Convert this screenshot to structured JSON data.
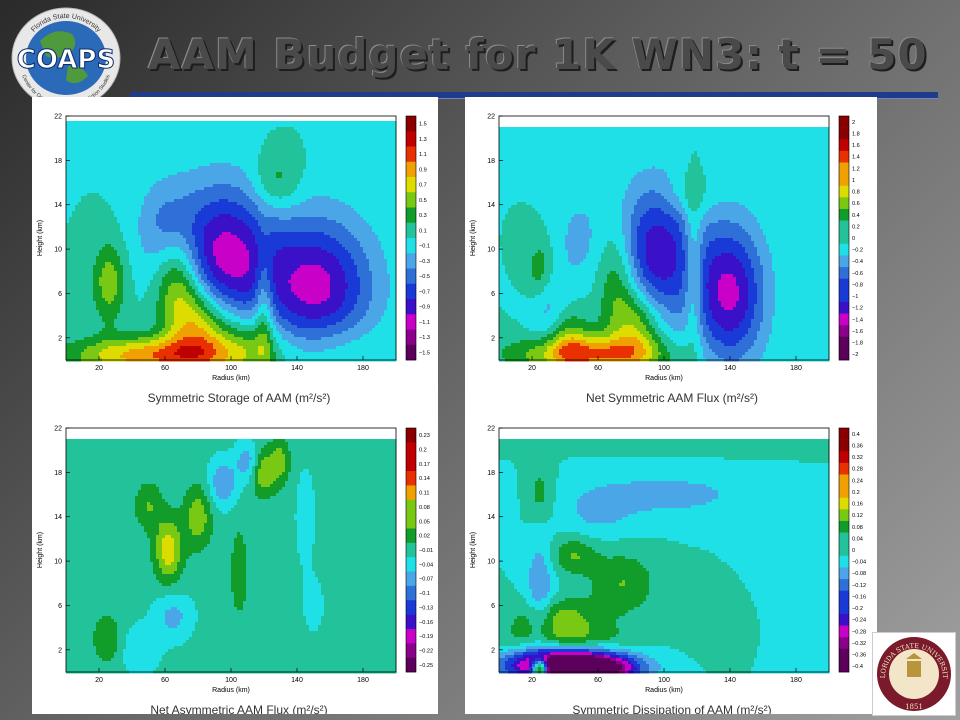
{
  "header": {
    "title": "AAM Budget for 1K WN3:  t = 50",
    "logo_coaps": {
      "text": "COAPS",
      "ring_top": "Florida State University",
      "ring_bottom": "Center for Ocean-Atmospheric Prediction Studies"
    }
  },
  "logo_fsu": {
    "ring_text": "FLORIDA STATE UNIVERSITY",
    "year": "1851"
  },
  "colors": {
    "background": "#6e6e6e",
    "title_bar": "#1f3c8c",
    "colormap": [
      "#5b005b",
      "#8a008a",
      "#c800c8",
      "#3a10c8",
      "#1a3ad8",
      "#2f6fd8",
      "#4aa6e6",
      "#1ee0e6",
      "#22c39a",
      "#129c29",
      "#78c814",
      "#dcdc00",
      "#f0a000",
      "#e83000",
      "#c00000",
      "#8a0000"
    ]
  },
  "chart_data": [
    {
      "type": "heatmap",
      "title": "Symmetric Storage of AAM (m²/s²)",
      "xlabel": "Radius (km)",
      "ylabel": "Height (km)",
      "xticks": [
        "20",
        "60",
        "100",
        "140",
        "180"
      ],
      "yticks": [
        "2",
        "6",
        "10",
        "14",
        "18",
        "22"
      ],
      "xlim": [
        0,
        200
      ],
      "ylim": [
        0,
        22
      ],
      "colorbar": [
        "1.5",
        "1.3",
        "1.1",
        "0.9",
        "0.7",
        "0.5",
        "0.3",
        "0.1",
        "−0.1",
        "−0.3",
        "−0.5",
        "−0.7",
        "−0.9",
        "−1.1",
        "−1.3",
        "−1.5"
      ],
      "vmin": -1.5,
      "vmax": 1.5,
      "data_top": 21.5,
      "features": [
        {
          "r": 95,
          "z": 9.5,
          "sr": 22,
          "sz": 4.5,
          "a": -1.0
        },
        {
          "r": 152,
          "z": 6.5,
          "sr": 24,
          "sz": 4.5,
          "a": -1.0
        },
        {
          "r": 68,
          "z": 7,
          "sr": 10,
          "sz": 3.5,
          "a": 0.75
        },
        {
          "r": 82,
          "z": 3,
          "sr": 12,
          "sz": 2.5,
          "a": 0.75
        },
        {
          "r": 26,
          "z": 7,
          "sr": 7,
          "sz": 2.5,
          "a": 0.5
        },
        {
          "r": 128,
          "z": 16,
          "sr": 10,
          "sz": 2,
          "a": 0.35
        },
        {
          "r": 55,
          "z": 0.4,
          "sr": 35,
          "sz": 1.2,
          "a": 0.9
        },
        {
          "r": 110,
          "z": 1.5,
          "sr": 15,
          "sz": 2,
          "a": 0.5
        },
        {
          "r": 120,
          "z": 5,
          "sr": 4,
          "sz": 4,
          "a": 0.45
        },
        {
          "r": 60,
          "z": 12,
          "sr": 12,
          "sz": 3,
          "a": -0.35
        },
        {
          "r": 160,
          "z": 1,
          "sr": 20,
          "sz": 2,
          "a": 0.25
        }
      ]
    },
    {
      "type": "heatmap",
      "title": "Net Symmetric AAM Flux (m²/s²)",
      "xlabel": "Radius (km)",
      "ylabel": "Height (km)",
      "xticks": [
        "20",
        "60",
        "100",
        "140",
        "180"
      ],
      "yticks": [
        "2",
        "6",
        "10",
        "14",
        "18",
        "22"
      ],
      "xlim": [
        0,
        200
      ],
      "ylim": [
        0,
        22
      ],
      "colorbar": [
        "2",
        "1.8",
        "1.6",
        "1.4",
        "1.2",
        "1",
        "0.8",
        "0.6",
        "0.4",
        "0.2",
        "0",
        "−0.2",
        "−0.4",
        "−0.6",
        "−0.8",
        "−1",
        "−1.2",
        "−1.4",
        "−1.6",
        "−1.8",
        "−2"
      ],
      "vmin": -2,
      "vmax": 2,
      "data_top": 21,
      "features": [
        {
          "r": 95,
          "z": 9.5,
          "sr": 18,
          "sz": 4.5,
          "a": -1.2
        },
        {
          "r": 140,
          "z": 6,
          "sr": 15,
          "sz": 4.5,
          "a": -1.3
        },
        {
          "r": 72,
          "z": 7,
          "sr": 9,
          "sz": 4,
          "a": 0.7
        },
        {
          "r": 118,
          "z": 8,
          "sr": 4,
          "sz": 5,
          "a": 0.6
        },
        {
          "r": 85,
          "z": 3,
          "sr": 10,
          "sz": 2.5,
          "a": 0.8
        },
        {
          "r": 55,
          "z": 0.5,
          "sr": 30,
          "sz": 1.2,
          "a": 1.2
        },
        {
          "r": 25,
          "z": 8,
          "sr": 6,
          "sz": 2,
          "a": 0.5
        },
        {
          "r": 30,
          "z": 4,
          "sr": 8,
          "sz": 3,
          "a": -0.5
        },
        {
          "r": 115,
          "z": 15,
          "sr": 10,
          "sz": 1.5,
          "a": 0.3
        },
        {
          "r": 48,
          "z": 11,
          "sr": 10,
          "sz": 3,
          "a": -0.3
        },
        {
          "r": 40,
          "z": 2,
          "sr": 10,
          "sz": 2,
          "a": 0.6
        }
      ]
    },
    {
      "type": "heatmap",
      "title": "Net Asymmetric AAM Flux (m²/s²)",
      "xlabel": "Radius (km)",
      "ylabel": "Height (km)",
      "xticks": [
        "20",
        "60",
        "100",
        "140",
        "180"
      ],
      "yticks": [
        "2",
        "6",
        "10",
        "14",
        "18",
        "22"
      ],
      "xlim": [
        0,
        200
      ],
      "ylim": [
        0,
        22
      ],
      "colorbar": [
        "0.23",
        "0.2",
        "0.17",
        "0.14",
        "0.11",
        "0.08",
        "0.05",
        "0.02",
        "−0.01",
        "−0.04",
        "−0.07",
        "−0.1",
        "−0.13",
        "−0.16",
        "−0.19",
        "−0.22",
        "−0.25"
      ],
      "vmin": -0.25,
      "vmax": 0.23,
      "data_top": 21,
      "features": [
        {
          "r": 62,
          "z": 11,
          "sr": 6,
          "sz": 2,
          "a": 0.1
        },
        {
          "r": 80,
          "z": 14,
          "sr": 6,
          "sz": 2,
          "a": 0.07
        },
        {
          "r": 95,
          "z": 17,
          "sr": 6,
          "sz": 1.5,
          "a": -0.07
        },
        {
          "r": 110,
          "z": 19,
          "sr": 5,
          "sz": 1.2,
          "a": -0.06
        },
        {
          "r": 120,
          "z": 18,
          "sr": 5,
          "sz": 1.5,
          "a": 0.08
        },
        {
          "r": 130,
          "z": 19,
          "sr": 4,
          "sz": 1.5,
          "a": 0.06
        },
        {
          "r": 50,
          "z": 15,
          "sr": 6,
          "sz": 1.5,
          "a": 0.05
        },
        {
          "r": 65,
          "z": 5,
          "sr": 8,
          "sz": 1.5,
          "a": -0.05
        },
        {
          "r": 25,
          "z": 3,
          "sr": 6,
          "sz": 1.5,
          "a": 0.05
        },
        {
          "r": 45,
          "z": 2,
          "sr": 8,
          "sz": 1.5,
          "a": -0.04
        },
        {
          "r": 105,
          "z": 9,
          "sr": 4,
          "sz": 3,
          "a": 0.04
        },
        {
          "r": 145,
          "z": 14,
          "sr": 4,
          "sz": 3,
          "a": -0.03
        },
        {
          "r": 150,
          "z": 6,
          "sr": 5,
          "sz": 2,
          "a": -0.02
        }
      ]
    },
    {
      "type": "heatmap",
      "title": "Symmetric Dissipation of AAM (m²/s²)",
      "xlabel": "Radius (km)",
      "ylabel": "Height (km)",
      "xticks": [
        "20",
        "60",
        "100",
        "140",
        "180"
      ],
      "yticks": [
        "2",
        "6",
        "10",
        "14",
        "18",
        "22"
      ],
      "xlim": [
        0,
        200
      ],
      "ylim": [
        0,
        22
      ],
      "colorbar": [
        "0.4",
        "0.36",
        "0.32",
        "0.28",
        "0.24",
        "0.2",
        "0.16",
        "0.12",
        "0.08",
        "0.04",
        "0",
        "−0.04",
        "−0.08",
        "−0.12",
        "−0.16",
        "−0.2",
        "−0.24",
        "−0.28",
        "−0.32",
        "−0.36",
        "−0.4"
      ],
      "vmin": -0.4,
      "vmax": 0.4,
      "data_top": 21,
      "features": [
        {
          "r": 40,
          "z": 0.8,
          "sr": 25,
          "sz": 1,
          "a": -0.35
        },
        {
          "r": 50,
          "z": 0.2,
          "sr": 20,
          "sz": 0.8,
          "a": -0.5
        },
        {
          "r": 25,
          "z": 0.3,
          "sr": 4,
          "sz": 0.6,
          "a": 0.6
        },
        {
          "r": 40,
          "z": 3,
          "sr": 25,
          "sz": 1,
          "a": 0.1
        },
        {
          "r": 35,
          "z": 5,
          "sr": 18,
          "sz": 1.2,
          "a": 0.12
        },
        {
          "r": 75,
          "z": 8,
          "sr": 14,
          "sz": 2,
          "a": 0.1
        },
        {
          "r": 45,
          "z": 10.5,
          "sr": 10,
          "sz": 1.2,
          "a": 0.1
        },
        {
          "r": 25,
          "z": 7,
          "sr": 6,
          "sz": 4,
          "a": -0.1
        },
        {
          "r": 100,
          "z": 16,
          "sr": 40,
          "sz": 1.5,
          "a": -0.07
        },
        {
          "r": 120,
          "z": 21,
          "sr": 60,
          "sz": 0.8,
          "a": 0.05
        },
        {
          "r": 130,
          "z": 5.5,
          "sr": 15,
          "sz": 2,
          "a": 0.05
        },
        {
          "r": 60,
          "z": 14,
          "sr": 15,
          "sz": 1.5,
          "a": -0.05
        },
        {
          "r": 170,
          "z": 8,
          "sr": 20,
          "sz": 3,
          "a": -0.02
        },
        {
          "r": 25,
          "z": 16,
          "sr": 6,
          "sz": 2,
          "a": 0.08
        }
      ]
    }
  ]
}
